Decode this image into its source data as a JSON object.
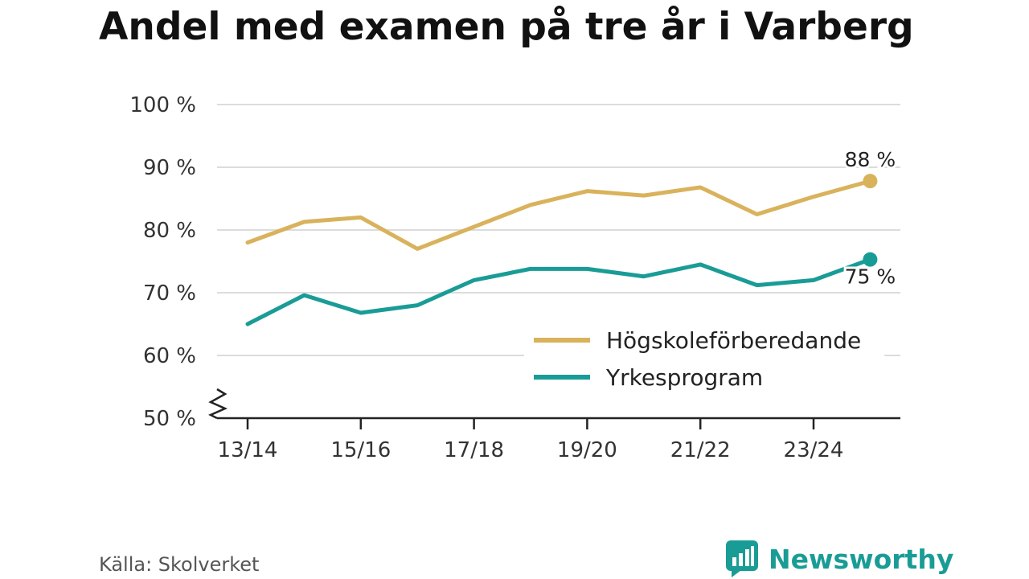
{
  "title": "Andel med examen på tre år i Varberg",
  "source": "Källa: Skolverket",
  "brand": {
    "name": "Newsworthy",
    "icon": "newsworthy-logo-icon",
    "color": "#1a9c96"
  },
  "chart_data": {
    "type": "line",
    "title": "Andel med examen på tre år i Varberg",
    "x": [
      "13/14",
      "14/15",
      "15/16",
      "16/17",
      "17/18",
      "18/19",
      "19/20",
      "20/21",
      "21/22",
      "22/23",
      "23/24",
      "24/25"
    ],
    "x_tick_labels": [
      "13/14",
      "15/16",
      "17/18",
      "19/20",
      "21/22",
      "23/24"
    ],
    "y_tick_labels": [
      "50 %",
      "60 %",
      "70 %",
      "80 %",
      "90 %",
      "100 %"
    ],
    "ylim": [
      50,
      100
    ],
    "y_ticks": [
      50,
      60,
      70,
      80,
      90,
      100
    ],
    "grid": true,
    "axis_break": true,
    "legend_position": "bottom-right",
    "series": [
      {
        "name": "Högskoleförberedande",
        "color": "#d9b25c",
        "values": [
          78,
          81.3,
          82,
          77,
          80.5,
          84,
          86.2,
          85.5,
          86.8,
          82.5,
          85.3,
          87.8
        ],
        "end_label": "88 %"
      },
      {
        "name": "Yrkesprogram",
        "color": "#1a9c96",
        "values": [
          65,
          69.6,
          66.8,
          68,
          72,
          73.8,
          73.8,
          72.6,
          74.5,
          71.2,
          72,
          75.3
        ],
        "end_label": "75 %"
      }
    ]
  }
}
